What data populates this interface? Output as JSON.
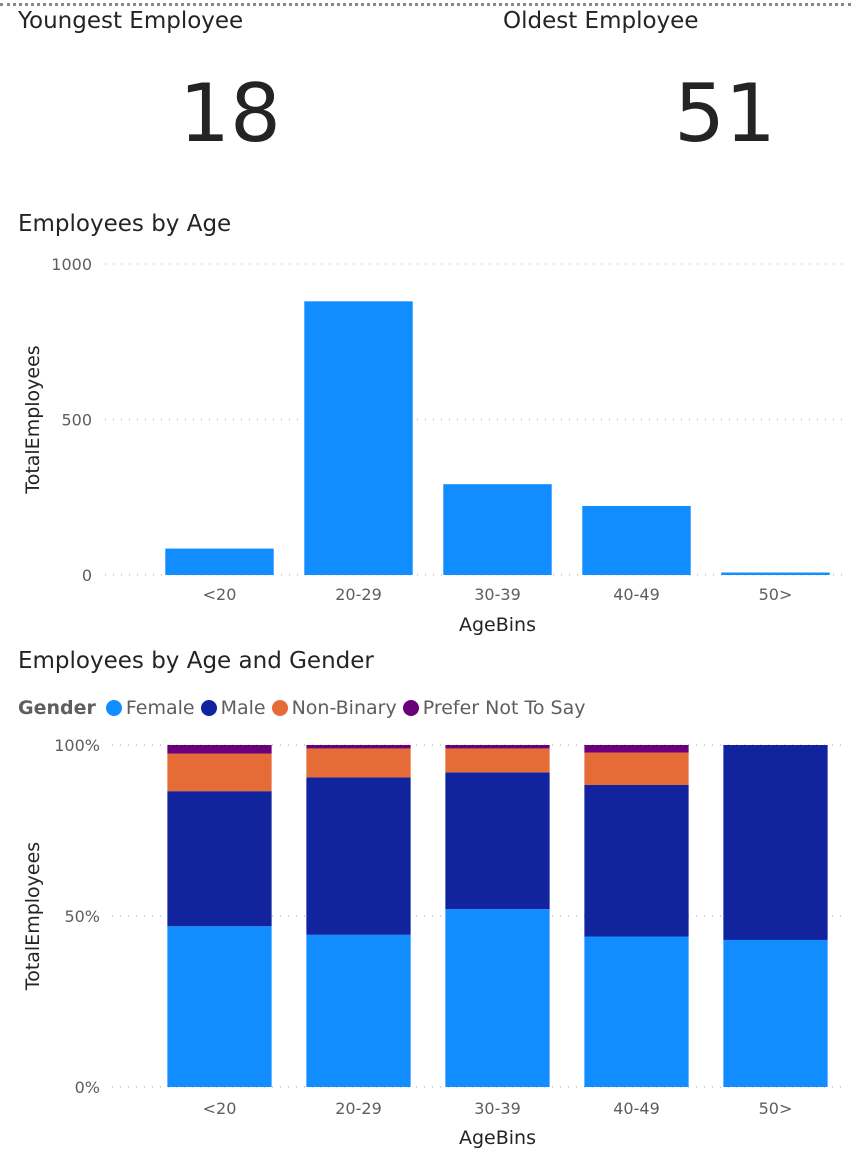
{
  "cards": {
    "youngest": {
      "title": "Youngest Employee",
      "value": "18"
    },
    "oldest": {
      "title": "Oldest Employee",
      "value": "51"
    }
  },
  "colors": {
    "Female": "#118dff",
    "Male": "#12239e",
    "Non-Binary": "#e66c37",
    "Prefer Not To Say": "#6b007b"
  },
  "chart_data": [
    {
      "type": "bar",
      "title": "Employees by Age",
      "xlabel": "AgeBins",
      "ylabel": "TotalEmployees",
      "categories": [
        "<20",
        "20-29",
        "30-39",
        "40-49",
        "50>"
      ],
      "values": [
        85,
        880,
        292,
        222,
        8
      ],
      "ylim": [
        0,
        1000
      ],
      "yticks": [
        {
          "value": 0,
          "label": "0"
        },
        {
          "value": 500,
          "label": "500"
        },
        {
          "value": 1000,
          "label": "1000"
        }
      ],
      "grid": true
    },
    {
      "type": "bar",
      "stacked": "100%",
      "title": "Employees by Age and Gender",
      "xlabel": "AgeBins",
      "ylabel": "TotalEmployees",
      "legend_title": "Gender",
      "legend_position": "top-left",
      "categories": [
        "<20",
        "20-29",
        "30-39",
        "40-49",
        "50>"
      ],
      "series": [
        {
          "name": "Female",
          "values": [
            47,
            44.5,
            52,
            44,
            43
          ]
        },
        {
          "name": "Male",
          "values": [
            39.5,
            46,
            40,
            44.3,
            57
          ]
        },
        {
          "name": "Non-Binary",
          "values": [
            11,
            8.5,
            7,
            9.5,
            0
          ]
        },
        {
          "name": "Prefer Not To Say",
          "values": [
            2.5,
            1,
            1,
            2.2,
            0
          ]
        }
      ],
      "ylim": [
        0,
        100
      ],
      "yticks": [
        {
          "value": 0,
          "label": "0%"
        },
        {
          "value": 50,
          "label": "50%"
        },
        {
          "value": 100,
          "label": "100%"
        }
      ],
      "grid": true
    }
  ]
}
